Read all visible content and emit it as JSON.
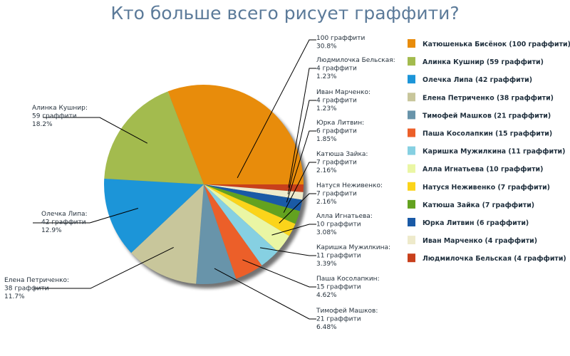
{
  "chart_data": {
    "type": "pie",
    "title": "Кто больше всего рисует граффити?",
    "legend_position": "right",
    "slices": [
      {
        "name": "Катюшенька Бисёнок",
        "value": 100,
        "percent": "30.8%",
        "label": "100 граффити",
        "legend": "Катюшенька Бисёнок (100 граффити)",
        "color": "#e88c0b"
      },
      {
        "name": "Алинка Кушнир",
        "value": 59,
        "percent": "18.2%",
        "label": "59 граффити",
        "legend": "Алинка Кушнир (59 граффити)",
        "color": "#a3bb4e"
      },
      {
        "name": "Олечка Липа",
        "value": 42,
        "percent": "12.9%",
        "label": "42 граффити",
        "legend": "Олечка Липа (42 граффити)",
        "color": "#1c95d8"
      },
      {
        "name": "Елена Петриченко",
        "value": 38,
        "percent": "11.7%",
        "label": "38 граффити",
        "legend": "Елена Петриченко (38 граффити)",
        "color": "#c8c69b"
      },
      {
        "name": "Тимофей Машков",
        "value": 21,
        "percent": "6.48%",
        "label": "21 граффити",
        "legend": "Тимофей Машков (21 граффити)",
        "color": "#6894aa"
      },
      {
        "name": "Паша Косолапкин",
        "value": 15,
        "percent": "4.62%",
        "label": "15 граффити",
        "legend": "Паша Косолапкин (15 граффити)",
        "color": "#ec5f29"
      },
      {
        "name": "Каришка Мужилкина",
        "value": 11,
        "percent": "3.39%",
        "label": "11 граффити",
        "legend": "Каришка Мужилкина (11 граффити)",
        "color": "#86d0e2"
      },
      {
        "name": "Алла Игнатьева",
        "value": 10,
        "percent": "3.08%",
        "label": "10 граффити",
        "legend": "Алла Игнатьева (10 граффити)",
        "color": "#eaf6a4"
      },
      {
        "name": "Натуся Неживенко",
        "value": 7,
        "percent": "2.16%",
        "label": "7 граффити",
        "legend": "Натуся Неживенко (7 граффити)",
        "color": "#fbd41a"
      },
      {
        "name": "Катюша Зайка",
        "value": 7,
        "percent": "2.16%",
        "label": "7 граффити",
        "legend": "Катюша Зайка (7 граффити)",
        "color": "#63a21f"
      },
      {
        "name": "Юрка Литвин",
        "value": 6,
        "percent": "1.85%",
        "label": "6 граффити",
        "legend": "Юрка Литвин (6 граффити)",
        "color": "#1a5aa6"
      },
      {
        "name": "Иван Марченко",
        "value": 4,
        "percent": "1.23%",
        "label": "4 граффити",
        "legend": "Иван Марченко (4 граффити)",
        "color": "#eeeacb"
      },
      {
        "name": "Людмилочка Бельская",
        "value": 4,
        "percent": "1.23%",
        "label": "4 граффити",
        "legend": "Людмилочка Бельская (4 граффити)",
        "color": "#c8401c"
      }
    ]
  }
}
